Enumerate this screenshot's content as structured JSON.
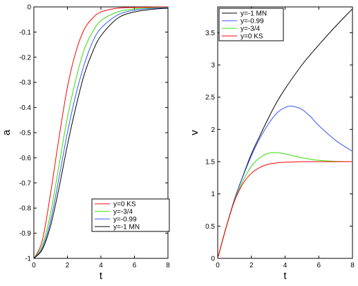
{
  "chart_data": [
    {
      "type": "line",
      "xlabel": "t",
      "ylabel": "a",
      "xlim": [
        0,
        8
      ],
      "ylim": [
        -1,
        0
      ],
      "xticks": [
        "0",
        "2",
        "4",
        "6",
        "8"
      ],
      "yticks": [
        "-1",
        "-0.9",
        "-0.8",
        "-0.7",
        "-0.6",
        "-0.5",
        "-0.4",
        "-0.3",
        "-0.2",
        "-0.1",
        "0"
      ],
      "grid": false,
      "legend_position": "bottom-right",
      "series": [
        {
          "name": "y=0  KS",
          "color": "#ff0000",
          "x": [
            0,
            0.5,
            1,
            1.5,
            2,
            2.5,
            3,
            3.5,
            4,
            5,
            6,
            7,
            8
          ],
          "y": [
            -1,
            -0.93,
            -0.74,
            -0.52,
            -0.32,
            -0.18,
            -0.09,
            -0.045,
            -0.02,
            -0.005,
            -0.002,
            -0.001,
            0
          ]
        },
        {
          "name": "y=-3/4",
          "color": "#33dd00",
          "x": [
            0,
            0.5,
            1,
            1.5,
            2,
            2.5,
            3,
            3.5,
            4,
            5,
            6,
            7,
            8
          ],
          "y": [
            -1,
            -0.95,
            -0.82,
            -0.63,
            -0.44,
            -0.29,
            -0.17,
            -0.1,
            -0.055,
            -0.02,
            -0.008,
            -0.004,
            -0.002
          ]
        },
        {
          "name": "y=-0.99",
          "color": "#3355ff",
          "x": [
            0,
            0.5,
            1,
            1.5,
            2,
            2.5,
            3,
            3.5,
            4,
            5,
            6,
            7,
            8
          ],
          "y": [
            -1,
            -0.96,
            -0.85,
            -0.68,
            -0.5,
            -0.35,
            -0.23,
            -0.14,
            -0.085,
            -0.032,
            -0.013,
            -0.006,
            -0.003
          ]
        },
        {
          "name": "y=-1 MN",
          "color": "#000000",
          "x": [
            0,
            0.5,
            1,
            1.5,
            2,
            2.5,
            3,
            3.5,
            4,
            5,
            6,
            7,
            8
          ],
          "y": [
            -1,
            -0.965,
            -0.87,
            -0.72,
            -0.55,
            -0.4,
            -0.27,
            -0.18,
            -0.115,
            -0.045,
            -0.02,
            -0.01,
            -0.005
          ]
        }
      ]
    },
    {
      "type": "line",
      "xlabel": "t",
      "ylabel": "v",
      "xlim": [
        0,
        8
      ],
      "ylim": [
        0,
        3.9
      ],
      "xticks": [
        "0",
        "2",
        "4",
        "6",
        "8"
      ],
      "yticks": [
        "0",
        "0.5",
        "1",
        "1.5",
        "2",
        "2.5",
        "3",
        "3.5"
      ],
      "grid": false,
      "legend_position": "top-left",
      "series": [
        {
          "name": "y=-1 MN",
          "color": "#000000",
          "x": [
            0,
            0.5,
            1,
            1.5,
            2,
            2.5,
            3,
            3.5,
            4,
            5,
            6,
            7,
            8
          ],
          "y": [
            0,
            0.48,
            0.92,
            1.28,
            1.62,
            1.9,
            2.17,
            2.42,
            2.63,
            3.0,
            3.31,
            3.6,
            3.87
          ]
        },
        {
          "name": "y=-0.99",
          "color": "#3355ff",
          "x": [
            0,
            0.5,
            1,
            1.5,
            2,
            2.5,
            3,
            3.5,
            4,
            4.4,
            5,
            5.5,
            6,
            7,
            8
          ],
          "y": [
            0,
            0.48,
            0.92,
            1.27,
            1.59,
            1.86,
            2.08,
            2.25,
            2.34,
            2.36,
            2.31,
            2.2,
            2.06,
            1.83,
            1.66
          ]
        },
        {
          "name": "y=-3/4",
          "color": "#33dd00",
          "x": [
            0,
            0.5,
            1,
            1.5,
            2,
            2.5,
            3,
            3.5,
            4,
            5,
            6,
            7,
            8
          ],
          "y": [
            0,
            0.48,
            0.9,
            1.2,
            1.43,
            1.56,
            1.63,
            1.64,
            1.62,
            1.56,
            1.52,
            1.505,
            1.5
          ]
        },
        {
          "name": "y=0  KS",
          "color": "#ff0000",
          "x": [
            0,
            0.5,
            1,
            1.5,
            2,
            2.5,
            3,
            3.5,
            4,
            5,
            6,
            7,
            8
          ],
          "y": [
            0,
            0.48,
            0.89,
            1.16,
            1.32,
            1.41,
            1.46,
            1.48,
            1.49,
            1.5,
            1.5,
            1.5,
            1.5
          ]
        }
      ]
    }
  ]
}
